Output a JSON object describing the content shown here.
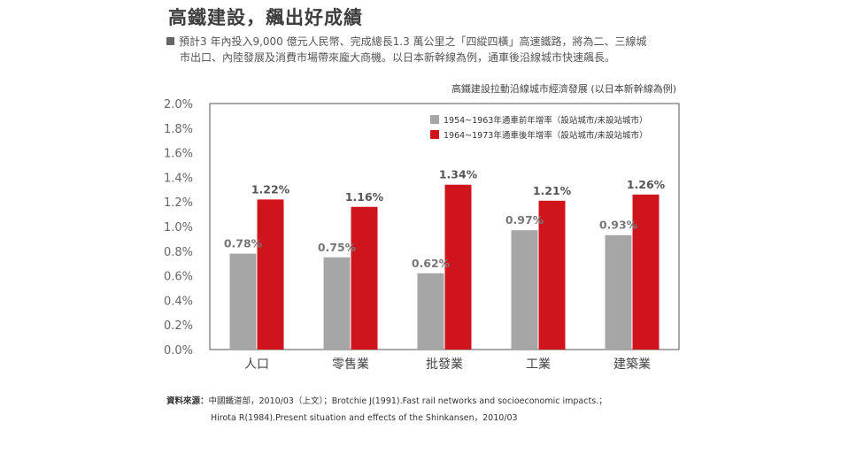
{
  "title": "高鐵建設，飆出好成績",
  "bullet": {
    "line1": "預計3 年內投入9,000 億元人民幣、完成總長1.3 萬公里之「四縱四橫」高速鐵路，將為二、三線城",
    "line2": "市出口、內陸發展及消費市場帶來龐大商機。以日本新幹線為例，通車後沿線城市快速飆長。"
  },
  "source": {
    "label": "資料來源：",
    "line1": "中國鐵道部，2010/03（上文）；Brotchie J(1991).Fast rail networks and socioeconomic impacts.；",
    "line2": "Hirota R(1984).Present situation and effects of the Shinkansen，2010/03"
  },
  "colors": {
    "series1": "#a6a6a6",
    "series2": "#d0141b",
    "border": "#555555"
  },
  "chart_data": {
    "type": "bar",
    "title": "高鐵建設拉動沿線城市經濟發展 (以日本新幹線為例)",
    "categories": [
      "人口",
      "零售業",
      "批發業",
      "工業",
      "建築業"
    ],
    "series": [
      {
        "name": "1954~1963年通車前年增率（設站城市/未設站城市）",
        "values": [
          0.78,
          0.75,
          0.62,
          0.97,
          0.93
        ]
      },
      {
        "name": "1964~1973年通車後年增率（設站城市/未設站城市）",
        "values": [
          1.22,
          1.16,
          1.34,
          1.21,
          1.26
        ]
      }
    ],
    "y_ticks": [
      "0.0%",
      "0.2%",
      "0.4%",
      "0.6%",
      "0.8%",
      "1.0%",
      "1.2%",
      "1.4%",
      "1.6%",
      "1.8%",
      "2.0%"
    ],
    "ylim": [
      0,
      2.0
    ],
    "value_format": "percent",
    "grid": false,
    "legend": "top-right"
  }
}
